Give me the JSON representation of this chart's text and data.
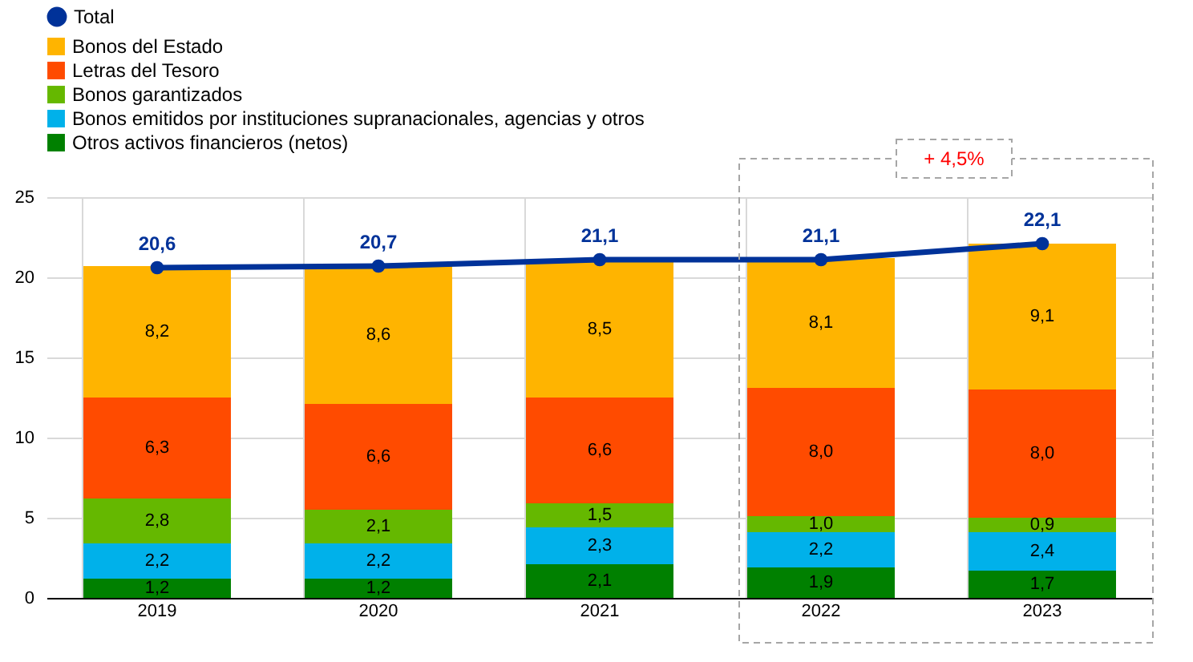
{
  "chart_data": {
    "type": "bar",
    "stacked": true,
    "categories": [
      "2019",
      "2020",
      "2021",
      "2022",
      "2023"
    ],
    "series": [
      {
        "name": "Otros activos financieros (netos)",
        "color": "#008000",
        "values": [
          1.2,
          1.2,
          2.1,
          1.9,
          1.7
        ],
        "value_labels": [
          "1,2",
          "1,2",
          "2,1",
          "1,9",
          "1,7"
        ]
      },
      {
        "name": "Bonos emitidos por instituciones supranacionales, agencias y otros",
        "color": "#00b1ea",
        "values": [
          2.2,
          2.2,
          2.3,
          2.2,
          2.4
        ],
        "value_labels": [
          "2,2",
          "2,2",
          "2,3",
          "2,2",
          "2,4"
        ]
      },
      {
        "name": "Bonos garantizados",
        "color": "#65b800",
        "values": [
          2.8,
          2.1,
          1.5,
          1.0,
          0.9
        ],
        "value_labels": [
          "2,8",
          "2,1",
          "1,5",
          "1,0",
          "0,9"
        ]
      },
      {
        "name": "Letras del Tesoro",
        "color": "#ff4b00",
        "values": [
          6.3,
          6.6,
          6.6,
          8.0,
          8.0
        ],
        "value_labels": [
          "6,3",
          "6,6",
          "6,6",
          "8,0",
          "8,0"
        ]
      },
      {
        "name": "Bonos del Estado",
        "color": "#ffb400",
        "values": [
          8.2,
          8.6,
          8.5,
          8.1,
          9.1
        ],
        "value_labels": [
          "8,2",
          "8,6",
          "8,5",
          "8,1",
          "9,1"
        ]
      },
      {
        "name": "Total",
        "type": "line",
        "color": "#003299",
        "values": [
          20.6,
          20.7,
          21.1,
          21.1,
          22.1
        ],
        "value_labels": [
          "20,6",
          "20,7",
          "21,1",
          "21,1",
          "22,1"
        ]
      }
    ],
    "ylim": [
      0,
      25
    ],
    "yticks": [
      0,
      5,
      10,
      15,
      20,
      25
    ],
    "grid": true,
    "legend": "top left",
    "marker": "circle",
    "line_style": "solid",
    "annotations": [
      "+ 4,5%"
    ]
  }
}
